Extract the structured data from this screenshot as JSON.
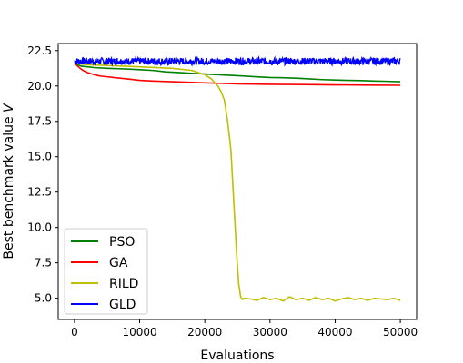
{
  "chart_data": {
    "type": "line",
    "title": "",
    "xlabel": "Evaluations",
    "ylabel": "Best benchmark value ",
    "ylabel_italic": "V",
    "xlim": [
      -2500,
      52500
    ],
    "ylim": [
      3.5,
      23.0
    ],
    "xticks": [
      0,
      10000,
      20000,
      30000,
      40000,
      50000
    ],
    "xtick_labels": [
      "0",
      "10000",
      "20000",
      "30000",
      "40000",
      "50000"
    ],
    "yticks": [
      5.0,
      7.5,
      10.0,
      12.5,
      15.0,
      17.5,
      20.0,
      22.5
    ],
    "ytick_labels": [
      "5.0",
      "7.5",
      "10.0",
      "12.5",
      "15.0",
      "17.5",
      "20.0",
      "22.5"
    ],
    "grid": false,
    "legend": {
      "position": "lower-left",
      "entries": [
        "PSO",
        "GA",
        "RILD",
        "GLD"
      ]
    },
    "series": [
      {
        "name": "PSO",
        "color": "#008000",
        "x": [
          0,
          500,
          1000,
          2000,
          3000,
          5000,
          8000,
          10000,
          12000,
          14000,
          16000,
          18000,
          20000,
          22000,
          24000,
          26000,
          28000,
          30000,
          32000,
          34000,
          36000,
          38000,
          40000,
          42000,
          44000,
          46000,
          48000,
          50000
        ],
        "y": [
          21.7,
          21.5,
          21.4,
          21.35,
          21.3,
          21.25,
          21.2,
          21.15,
          21.1,
          21.0,
          20.95,
          20.9,
          20.85,
          20.8,
          20.75,
          20.7,
          20.65,
          20.6,
          20.58,
          20.55,
          20.5,
          20.45,
          20.42,
          20.4,
          20.38,
          20.35,
          20.33,
          20.3
        ]
      },
      {
        "name": "GA",
        "color": "#ff0000",
        "x": [
          0,
          500,
          1000,
          1500,
          2000,
          3000,
          4000,
          5000,
          6000,
          8000,
          10000,
          12000,
          15000,
          20000,
          25000,
          30000,
          35000,
          40000,
          45000,
          50000
        ],
        "y": [
          21.6,
          21.4,
          21.2,
          21.05,
          20.95,
          20.8,
          20.7,
          20.65,
          20.6,
          20.5,
          20.4,
          20.35,
          20.3,
          20.22,
          20.15,
          20.12,
          20.1,
          20.08,
          20.06,
          20.05
        ]
      },
      {
        "name": "RILD",
        "color": "#bfbf00",
        "x": [
          0,
          2000,
          5000,
          10000,
          15000,
          18000,
          20000,
          21000,
          22000,
          22500,
          23000,
          23500,
          24000,
          24300,
          24600,
          24900,
          25200,
          25500,
          25800,
          26000,
          27000,
          28000,
          29000,
          30000,
          31000,
          32000,
          33000,
          34000,
          35000,
          36000,
          37000,
          38000,
          39000,
          40000,
          41000,
          42000,
          43000,
          44000,
          45000,
          46000,
          47000,
          48000,
          49000,
          50000
        ],
        "y": [
          21.6,
          21.5,
          21.45,
          21.35,
          21.25,
          21.1,
          20.8,
          20.5,
          20.0,
          19.6,
          19.0,
          17.5,
          15.5,
          13.0,
          10.5,
          8.0,
          6.0,
          5.1,
          4.9,
          5.0,
          4.95,
          4.85,
          5.05,
          4.9,
          5.0,
          4.8,
          5.1,
          4.9,
          5.0,
          4.85,
          5.05,
          4.9,
          5.0,
          4.8,
          4.95,
          5.05,
          4.9,
          5.0,
          4.85,
          5.0,
          4.95,
          4.9,
          5.0,
          4.85
        ]
      },
      {
        "name": "GLD",
        "color": "#0000ff",
        "x_start": 0,
        "x_end": 50000,
        "mean": 21.75,
        "band_low": 21.5,
        "band_high": 22.0
      }
    ]
  }
}
